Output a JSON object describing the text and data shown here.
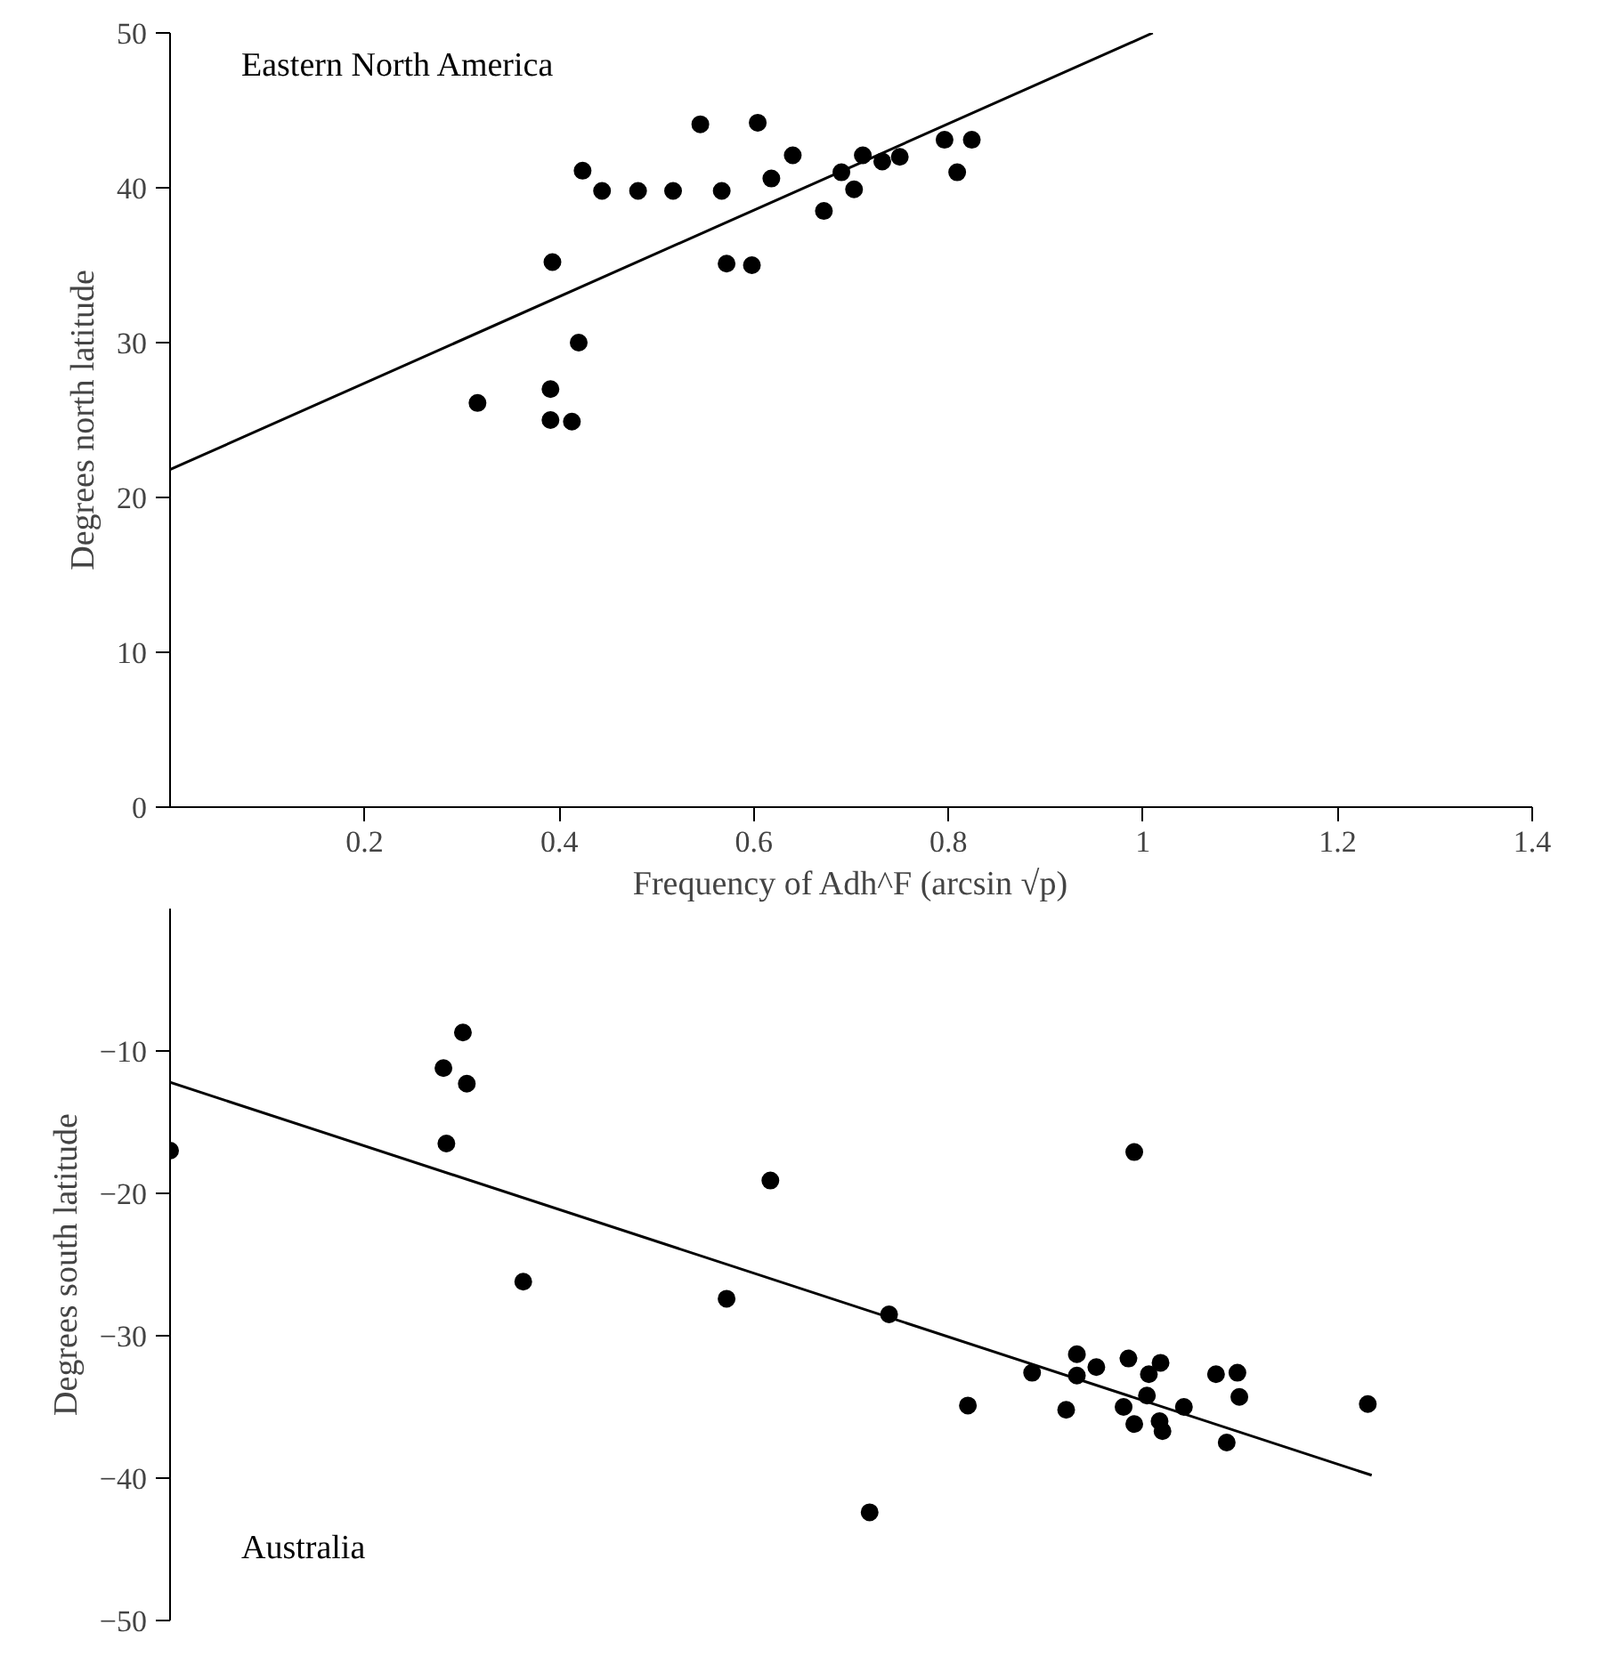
{
  "chart_data": [
    {
      "type": "scatter",
      "title": "Eastern North America",
      "xlabel": "Frequency of Adh^F (arcsin √p)",
      "ylabel": "Degrees north latitude",
      "xlim": [
        0,
        1.4
      ],
      "ylim": [
        0,
        50
      ],
      "xticks": [
        0.2,
        0.4,
        0.6,
        0.8,
        1,
        1.2,
        1.4
      ],
      "yticks": [
        0,
        10,
        20,
        30,
        40,
        50
      ],
      "grid": false,
      "series": [
        {
          "color": "#000000",
          "marker": "circle",
          "x": [
            0.316,
            0.391,
            0.391,
            0.413,
            0.42,
            0.393,
            0.424,
            0.444,
            0.481,
            0.517,
            0.545,
            0.567,
            0.572,
            0.598,
            0.604,
            0.618,
            0.64,
            0.672,
            0.69,
            0.703,
            0.712,
            0.732,
            0.75,
            0.796,
            0.809,
            0.824
          ],
          "values": [
            26.1,
            27.0,
            25.0,
            24.9,
            30.0,
            35.2,
            41.1,
            39.8,
            39.8,
            39.8,
            44.1,
            39.8,
            35.1,
            35.0,
            44.2,
            40.6,
            42.1,
            38.5,
            41.0,
            39.9,
            42.1,
            41.7,
            42.0,
            43.1,
            41.0,
            43.1
          ]
        },
        {
          "type": "line",
          "color": "#000000",
          "x": [
            0,
            1.01
          ],
          "values": [
            21.8,
            50
          ]
        }
      ]
    },
    {
      "type": "scatter",
      "title": "Australia",
      "ylabel": "Degrees south latitude",
      "xlim": [
        0,
        1.4
      ],
      "ylim": [
        -50,
        0
      ],
      "yticks": [
        -10,
        -20,
        -30,
        -40,
        -50
      ],
      "tick_labels": "y",
      "grid": false,
      "series": [
        {
          "color": "#000000",
          "marker": "circle",
          "x": [
            0.0,
            0.301,
            0.281,
            0.305,
            0.284,
            0.617,
            0.363,
            0.572,
            0.739,
            0.719,
            0.82,
            0.886,
            0.921,
            0.932,
            0.932,
            0.952,
            0.985,
            1.018,
            1.006,
            1.004,
            0.98,
            0.991,
            1.017,
            1.02,
            1.042,
            1.075,
            1.097,
            1.099,
            1.086,
            1.231,
            0.991
          ],
          "values": [
            -17.0,
            -8.7,
            -11.2,
            -12.3,
            -16.5,
            -19.1,
            -26.2,
            -27.4,
            -28.5,
            -42.4,
            -34.9,
            -32.6,
            -35.2,
            -31.3,
            -32.8,
            -32.2,
            -31.6,
            -31.9,
            -32.7,
            -34.2,
            -35.0,
            -36.2,
            -36.0,
            -36.7,
            -35.0,
            -32.7,
            -32.6,
            -34.3,
            -37.5,
            -34.8,
            -17.1
          ]
        },
        {
          "type": "line",
          "color": "#000000",
          "x": [
            0,
            1.235
          ],
          "values": [
            -12.2,
            -39.8
          ]
        }
      ]
    }
  ]
}
